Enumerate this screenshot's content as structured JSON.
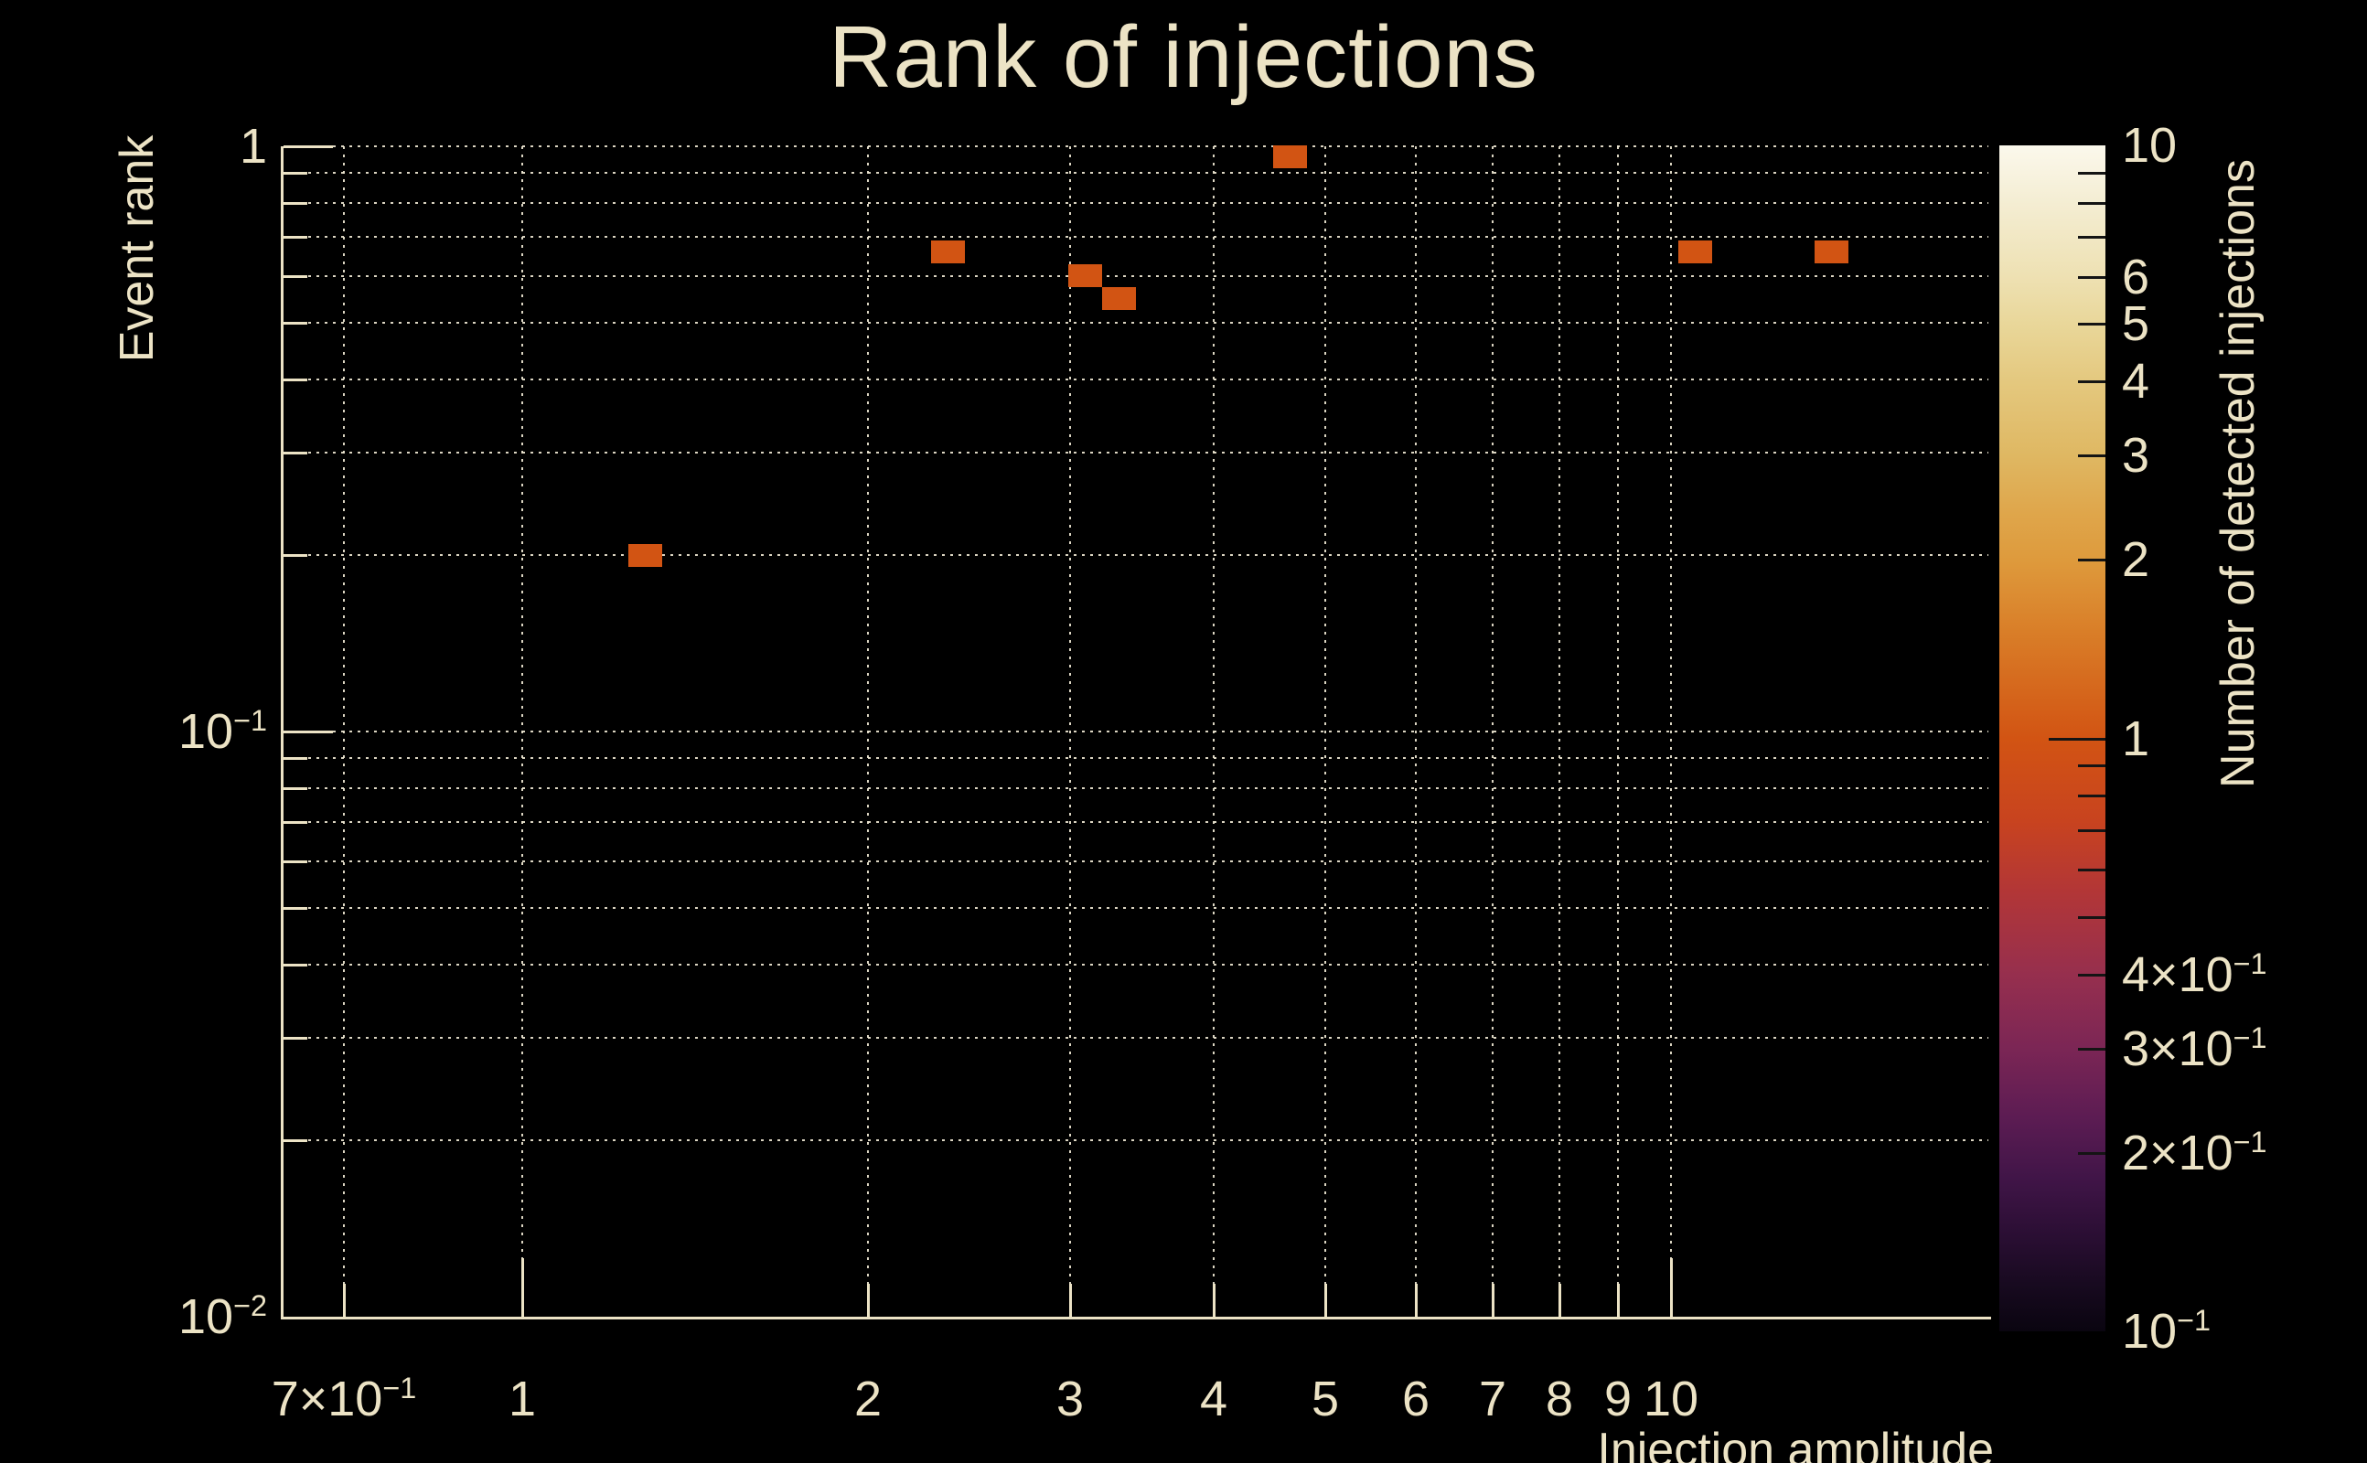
{
  "title": "Rank of injections",
  "colors": {
    "background": "#000000",
    "text": "#ece3c5",
    "grid": "#eee7d2",
    "axis": "#ece3c5",
    "marker": "#d25413"
  },
  "chart_data": {
    "type": "heatmap",
    "title": "Rank of injections",
    "xlabel": "Injection amplitude",
    "ylabel": "Event rank",
    "zlabel": "Number of detected injections",
    "xscale": "log",
    "yscale": "log",
    "zscale": "log",
    "xlim": [
      0.62,
      18.9
    ],
    "ylim": [
      0.01,
      1.0
    ],
    "zlim": [
      0.1,
      10
    ],
    "grid": true,
    "legend_position": "right-colorbar",
    "points": [
      {
        "x": 1.28,
        "y": 0.2,
        "count": 1
      },
      {
        "x": 2.35,
        "y": 0.66,
        "count": 1
      },
      {
        "x": 3.09,
        "y": 0.6,
        "count": 1
      },
      {
        "x": 3.31,
        "y": 0.55,
        "count": 1
      },
      {
        "x": 4.66,
        "y": 0.96,
        "count": 1
      },
      {
        "x": 10.5,
        "y": 0.66,
        "count": 1
      },
      {
        "x": 13.8,
        "y": 0.66,
        "count": 1
      }
    ],
    "x_ticks": [
      {
        "v": 0.7,
        "label": "7×10^−1"
      },
      {
        "v": 1,
        "label": "1"
      },
      {
        "v": 2,
        "label": "2"
      },
      {
        "v": 3,
        "label": "3"
      },
      {
        "v": 4,
        "label": "4"
      },
      {
        "v": 5,
        "label": "5"
      },
      {
        "v": 6,
        "label": "6"
      },
      {
        "v": 7,
        "label": "7"
      },
      {
        "v": 8,
        "label": "8"
      },
      {
        "v": 9,
        "label": "9"
      },
      {
        "v": 10,
        "label": "10"
      }
    ],
    "y_ticks": [
      {
        "v": 1,
        "label": "1"
      },
      {
        "v": 0.1,
        "label": "10^−1"
      },
      {
        "v": 0.01,
        "label": "10^−2"
      }
    ],
    "y_minor": [
      0.9,
      0.8,
      0.7,
      0.6,
      0.5,
      0.4,
      0.3,
      0.2,
      0.09,
      0.08,
      0.07,
      0.06,
      0.05,
      0.04,
      0.03,
      0.02
    ],
    "colorbar": {
      "ticks": [
        {
          "v": 10,
          "label": "10"
        },
        {
          "v": 6,
          "label": "6"
        },
        {
          "v": 5,
          "label": "5"
        },
        {
          "v": 4,
          "label": "4"
        },
        {
          "v": 3,
          "label": "3"
        },
        {
          "v": 2,
          "label": "2"
        },
        {
          "v": 1,
          "label": "1"
        },
        {
          "v": 0.4,
          "label": "4×10^−1"
        },
        {
          "v": 0.3,
          "label": "3×10^−1"
        },
        {
          "v": 0.2,
          "label": "2×10^−1"
        },
        {
          "v": 0.1,
          "label": "10^−1"
        }
      ],
      "minor_ticks": [
        9,
        8,
        7,
        6,
        5,
        4,
        3,
        2,
        0.9,
        0.8,
        0.7,
        0.6,
        0.5,
        0.4,
        0.3,
        0.2
      ],
      "gradient": [
        {
          "at": 0,
          "color": "#fbf8ec"
        },
        {
          "at": 5,
          "color": "#f4edd2"
        },
        {
          "at": 11,
          "color": "#eee1b3"
        },
        {
          "at": 15,
          "color": "#e9d79a"
        },
        {
          "at": 20,
          "color": "#e4c87e"
        },
        {
          "at": 26,
          "color": "#dfb863"
        },
        {
          "at": 31,
          "color": "#dfa64b"
        },
        {
          "at": 35,
          "color": "#de9a3c"
        },
        {
          "at": 41,
          "color": "#d97e28"
        },
        {
          "at": 50,
          "color": "#d25413"
        },
        {
          "at": 57,
          "color": "#c8431f"
        },
        {
          "at": 63,
          "color": "#b23637"
        },
        {
          "at": 70,
          "color": "#962f4e"
        },
        {
          "at": 76,
          "color": "#7c2655"
        },
        {
          "at": 82,
          "color": "#5c1c53"
        },
        {
          "at": 87,
          "color": "#411548"
        },
        {
          "at": 92,
          "color": "#2a0e33"
        },
        {
          "at": 96,
          "color": "#180a20"
        },
        {
          "at": 100,
          "color": "#0a0510"
        }
      ]
    }
  }
}
